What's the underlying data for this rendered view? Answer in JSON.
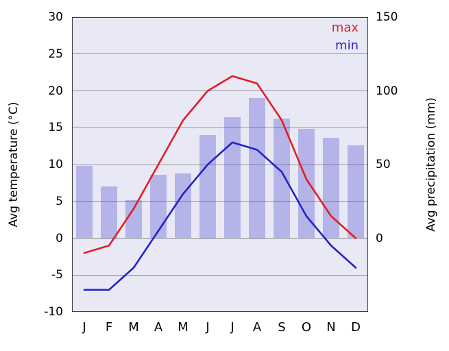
{
  "chart_data": {
    "type": "bar+line",
    "description": "Climate chart: monthly max/min temperature lines with precipitation bars",
    "categories": [
      "J",
      "F",
      "M",
      "A",
      "M",
      "J",
      "J",
      "A",
      "S",
      "O",
      "N",
      "D"
    ],
    "series": [
      {
        "name": "max",
        "type": "line",
        "axis": "temperature_C",
        "color": "#e31b23",
        "values": [
          -2,
          -1,
          4,
          10,
          16,
          20,
          22,
          21,
          16,
          8,
          3,
          0
        ]
      },
      {
        "name": "min",
        "type": "line",
        "axis": "temperature_C",
        "color": "#2222cc",
        "values": [
          -7,
          -7,
          -4,
          1,
          6,
          10,
          13,
          12,
          9,
          3,
          -1,
          -4
        ]
      },
      {
        "name": "precipitation",
        "type": "bar",
        "axis": "precipitation_mm",
        "color": "#b4b4e8",
        "values": [
          49,
          35,
          26,
          43,
          44,
          70,
          82,
          95,
          81,
          74,
          68,
          63
        ]
      }
    ],
    "left_axis": {
      "label": "Avg temperature (°C)",
      "min": -10,
      "max": 30,
      "ticks": [
        30,
        25,
        20,
        15,
        10,
        5,
        0,
        -5,
        -10
      ]
    },
    "right_axis": {
      "label": "Avg precipitation (mm)",
      "min": -50,
      "max": 150,
      "ticks": [
        150,
        100,
        50,
        0
      ]
    },
    "legend": {
      "position": "top-right-inside",
      "entries": [
        {
          "label": "max",
          "color": "#e31b23"
        },
        {
          "label": "min",
          "color": "#2222cc"
        }
      ]
    },
    "grid": true,
    "plot_background": "#e9e9f6"
  }
}
